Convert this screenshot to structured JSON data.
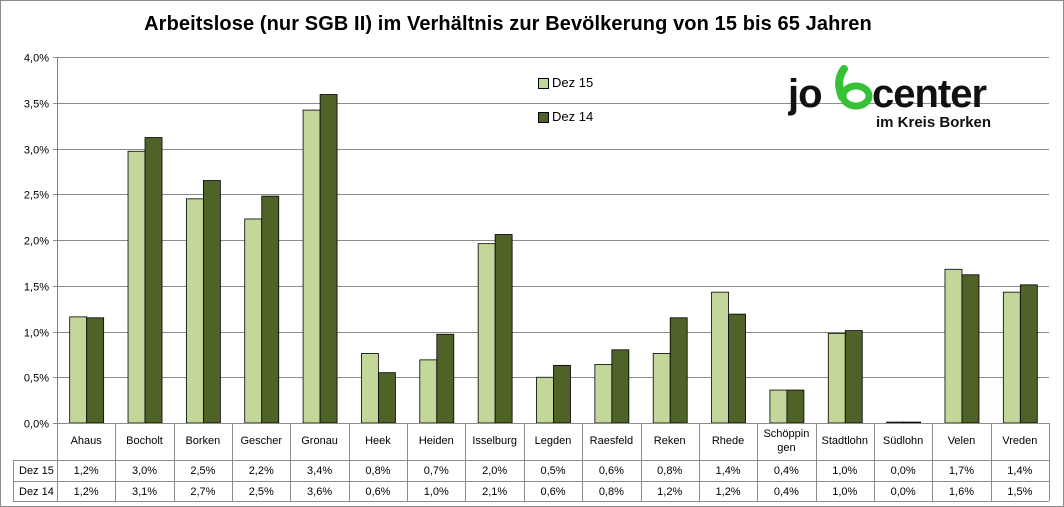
{
  "chart_data": {
    "type": "bar",
    "title": "Arbeitslose (nur SGB II) im Verhältnis zur Bevölkerung von 15 bis 65 Jahren",
    "categories": [
      "Ahaus",
      "Bocholt",
      "Borken",
      "Gescher",
      "Gronau",
      "Heek",
      "Heiden",
      "Isselburg",
      "Legden",
      "Raesfeld",
      "Reken",
      "Rhede",
      "Schöppingen",
      "Stadtlohn",
      "Südlohn",
      "Velen",
      "Vreden"
    ],
    "category_labels": [
      [
        "Ahaus"
      ],
      [
        "Bocholt"
      ],
      [
        "Borken"
      ],
      [
        "Gescher"
      ],
      [
        "Gronau"
      ],
      [
        "Heek"
      ],
      [
        "Heiden"
      ],
      [
        "Isselburg"
      ],
      [
        "Legden"
      ],
      [
        "Raesfeld"
      ],
      [
        "Reken"
      ],
      [
        "Rhede"
      ],
      [
        "Schöppin",
        "gen"
      ],
      [
        "Stadtlohn"
      ],
      [
        "Südlohn"
      ],
      [
        "Velen"
      ],
      [
        "Vreden"
      ]
    ],
    "series": [
      {
        "name": "Dez 15",
        "color": "#c4d79b",
        "values": [
          1.16,
          2.97,
          2.45,
          2.23,
          3.42,
          0.76,
          0.69,
          1.96,
          0.5,
          0.64,
          0.76,
          1.43,
          0.36,
          0.98,
          0.01,
          1.68,
          1.43
        ],
        "labels": [
          "1,2%",
          "3,0%",
          "2,5%",
          "2,2%",
          "3,4%",
          "0,8%",
          "0,7%",
          "2,0%",
          "0,5%",
          "0,6%",
          "0,8%",
          "1,4%",
          "0,4%",
          "1,0%",
          "0,0%",
          "1,7%",
          "1,4%"
        ]
      },
      {
        "name": "Dez 14",
        "color": "#4f6228",
        "values": [
          1.15,
          3.12,
          2.65,
          2.48,
          3.59,
          0.55,
          0.97,
          2.06,
          0.63,
          0.8,
          1.15,
          1.19,
          0.36,
          1.01,
          0.01,
          1.62,
          1.51
        ],
        "labels": [
          "1,2%",
          "3,1%",
          "2,7%",
          "2,5%",
          "3,6%",
          "0,6%",
          "1,0%",
          "2,1%",
          "0,6%",
          "0,8%",
          "1,2%",
          "1,2%",
          "0,4%",
          "1,0%",
          "0,0%",
          "1,6%",
          "1,5%"
        ]
      }
    ],
    "ylim": [
      0,
      4.0
    ],
    "yticks": [
      "0,0%",
      "0,5%",
      "1,0%",
      "1,5%",
      "2,0%",
      "2,5%",
      "3,0%",
      "3,5%",
      "4,0%"
    ],
    "grid": true,
    "legend_position": "top-center",
    "data_table": true
  },
  "logo": {
    "line1": "jobcenter",
    "line2": "im Kreis Borken",
    "accent_color": "#35c236",
    "text_color": "#111111"
  }
}
